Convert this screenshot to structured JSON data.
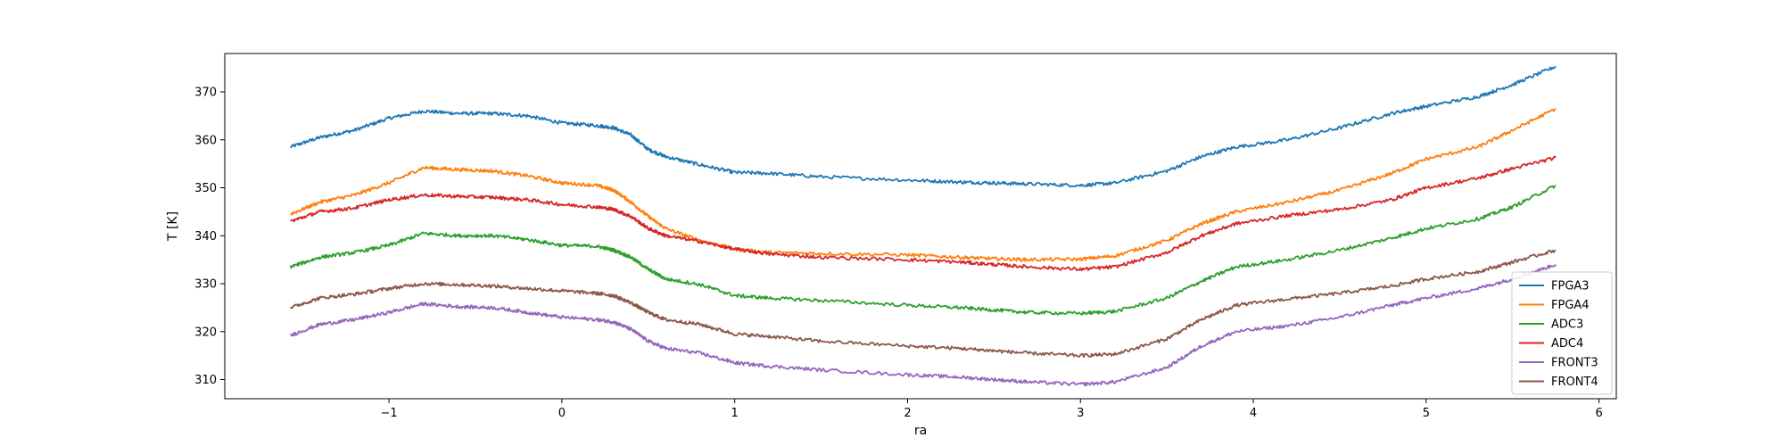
{
  "chart_data": {
    "type": "line",
    "xlabel": "ra",
    "ylabel": "T [K]",
    "xlim": [
      -1.95,
      6.1
    ],
    "ylim": [
      306,
      378
    ],
    "xticks": [
      -1,
      0,
      1,
      2,
      3,
      4,
      5,
      6
    ],
    "yticks": [
      310,
      320,
      330,
      340,
      350,
      360,
      370
    ],
    "grid": false,
    "legend_position": "lower right",
    "x": [
      -1.57,
      -1.4,
      -1.2,
      -1.0,
      -0.8,
      -0.6,
      -0.4,
      -0.2,
      0.0,
      0.2,
      0.3,
      0.4,
      0.5,
      0.6,
      0.8,
      1.0,
      1.2,
      1.5,
      2.0,
      2.3,
      2.5,
      2.7,
      3.0,
      3.2,
      3.5,
      3.7,
      3.9,
      4.2,
      4.5,
      4.8,
      5.0,
      5.3,
      5.5,
      5.75
    ],
    "series": [
      {
        "name": "FPGA3",
        "color": "#1f77b4",
        "values": [
          358.5,
          360.5,
          362,
          364.5,
          366,
          365.5,
          365.5,
          365,
          363.5,
          363,
          362.5,
          361,
          358,
          356.5,
          354.8,
          353.2,
          353,
          352.3,
          351.6,
          351.2,
          351,
          350.8,
          350.5,
          351.0,
          353.5,
          356.5,
          358.5,
          360,
          362.5,
          365.5,
          367,
          369,
          371.5,
          375.3
        ]
      },
      {
        "name": "FPGA4",
        "color": "#ff7f0e",
        "values": [
          344.5,
          347,
          348.5,
          351,
          354.2,
          353.8,
          353.5,
          352.5,
          351,
          350.5,
          349.5,
          347,
          344,
          341.5,
          339,
          337.2,
          336.5,
          336.3,
          336,
          335.5,
          335.2,
          335,
          335.1,
          335.8,
          339,
          342.5,
          345,
          347,
          349.5,
          353,
          356,
          358.5,
          362,
          366.5
        ]
      },
      {
        "name": "ADC3",
        "color": "#2ca02c",
        "values": [
          333.5,
          335.5,
          336.5,
          338,
          340.5,
          340,
          340,
          339.2,
          338,
          337.8,
          337,
          335.5,
          333,
          331,
          329.8,
          327.5,
          327,
          326.5,
          325.5,
          325,
          324.5,
          324,
          323.8,
          324.2,
          327,
          330.5,
          333.5,
          335,
          337,
          339.5,
          341.5,
          343.5,
          346,
          350.5
        ]
      },
      {
        "name": "ADC4",
        "color": "#d62728",
        "values": [
          343,
          345,
          345.8,
          347.5,
          348.5,
          348.2,
          348,
          347.5,
          346.5,
          346,
          345.5,
          344,
          341.5,
          340,
          338.8,
          337.2,
          336.2,
          335.5,
          335,
          334.5,
          334,
          333.5,
          333,
          333.5,
          336.5,
          340,
          342.5,
          344.2,
          345.5,
          347.5,
          350,
          352,
          354,
          356.3
        ]
      },
      {
        "name": "FRONT3",
        "color": "#9467bd",
        "values": [
          319.2,
          321.5,
          322.5,
          324,
          325.8,
          325.2,
          325,
          324,
          323,
          322.5,
          322,
          320.5,
          318,
          316.5,
          315.5,
          313.5,
          312.8,
          312,
          311,
          310.5,
          310,
          309.5,
          309,
          309.5,
          312.5,
          317,
          320,
          321.2,
          323,
          325.5,
          327,
          329,
          331,
          334
        ]
      },
      {
        "name": "FRONT4",
        "color": "#8c564b",
        "values": [
          325,
          327,
          327.8,
          329,
          330,
          329.8,
          329.5,
          329,
          328.5,
          328,
          327.5,
          326,
          324,
          322.5,
          321.5,
          319.5,
          319,
          318,
          317,
          316.5,
          316,
          315.5,
          315,
          315.3,
          318.5,
          322.5,
          325.5,
          326.8,
          328,
          329.5,
          331,
          332.5,
          334.5,
          337
        ]
      }
    ]
  }
}
